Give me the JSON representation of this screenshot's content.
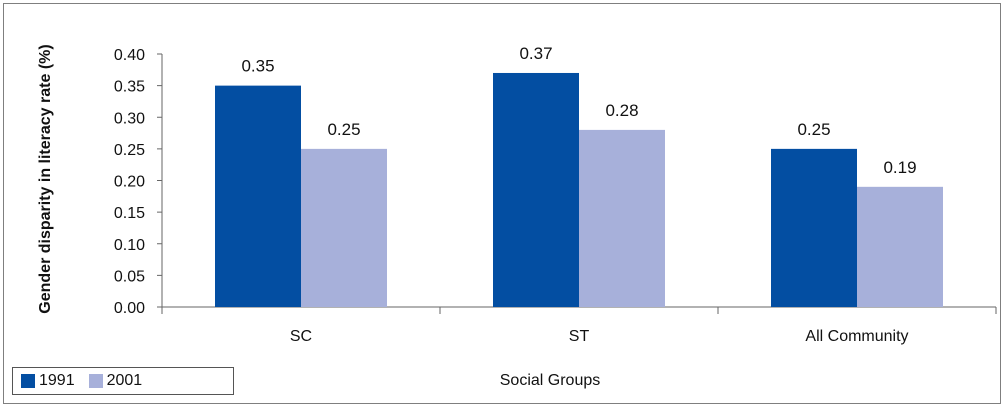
{
  "chart_data": {
    "type": "bar",
    "categories": [
      "SC",
      "ST",
      "All Community"
    ],
    "series": [
      {
        "name": "1991",
        "values": [
          0.35,
          0.37,
          0.25
        ],
        "color": "#034ea2"
      },
      {
        "name": "2001",
        "values": [
          0.25,
          0.28,
          0.19
        ],
        "color": "#a7b0da"
      }
    ],
    "data_labels": [
      [
        "0.35",
        "0.37",
        "0.25"
      ],
      [
        "0.25",
        "0.28",
        "0.19"
      ]
    ],
    "yticks": [
      "0.00",
      "0.05",
      "0.10",
      "0.15",
      "0.20",
      "0.25",
      "0.30",
      "0.35",
      "0.40"
    ],
    "ylim": [
      0,
      0.4
    ],
    "xlabel": "Social Groups",
    "ylabel": "Gender disparity in literacy rate (%)",
    "legend_position": "bottom-left",
    "grid": false
  }
}
